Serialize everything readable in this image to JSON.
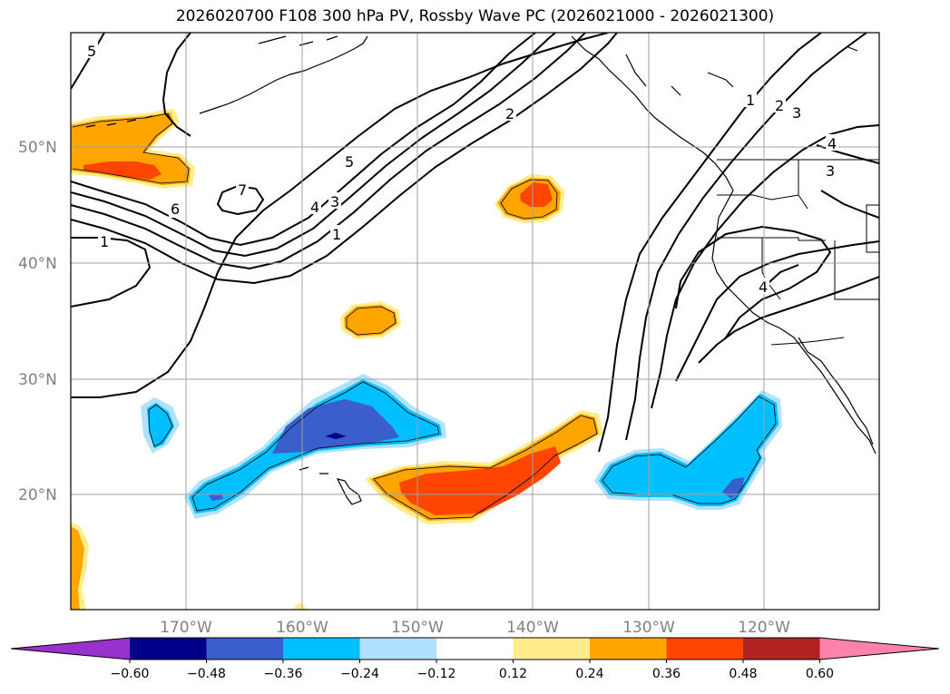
{
  "title": "2026020700 F108 300 hPa PV, Rossby Wave PC (2026021000 - 2026021300)",
  "lat_labels": [
    "50°N",
    "40°N",
    "30°N",
    "20°N"
  ],
  "lon_labels": [
    "170°W",
    "160°W",
    "150°W",
    "140°W",
    "130°W",
    "120°W"
  ],
  "contour_labels": [
    "5",
    "7",
    "6",
    "4",
    "3",
    "1",
    "5",
    "2",
    "1",
    "2",
    "3",
    "4",
    "3",
    "4",
    "1"
  ],
  "colorbar": {
    "tick_labels": [
      "−0.60",
      "−0.48",
      "−0.36",
      "−0.24",
      "−0.12",
      "0.12",
      "0.24",
      "0.36",
      "0.48",
      "0.60"
    ],
    "colors": [
      "#9932cc",
      "#00008b",
      "#3a5fcd",
      "#00bfff",
      "#b0e2ff",
      "#ffffff",
      "#ffec8b",
      "#ffa500",
      "#ff4500",
      "#b22222",
      "#ff82ab"
    ]
  }
}
